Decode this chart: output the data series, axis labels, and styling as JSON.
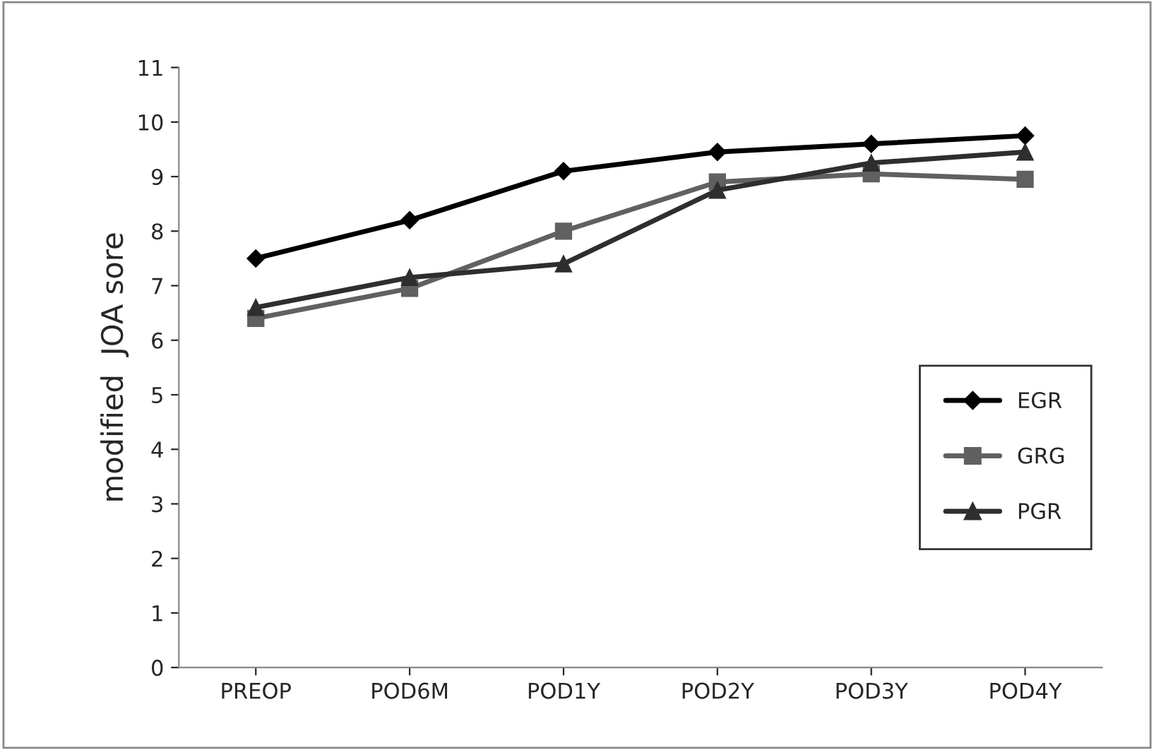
{
  "chart_data": {
    "type": "line",
    "ylabel": "modified  JOA sore",
    "categories": [
      "PREOP",
      "POD6M",
      "POD1Y",
      "POD2Y",
      "POD3Y",
      "POD4Y"
    ],
    "series": [
      {
        "name": "EGR",
        "color": "#000000",
        "marker": "diamond",
        "values": [
          7.5,
          8.2,
          9.1,
          9.45,
          9.6,
          9.75
        ]
      },
      {
        "name": "GRG",
        "color": "#606060",
        "marker": "square",
        "values": [
          6.4,
          6.95,
          8.0,
          8.9,
          9.05,
          8.95
        ]
      },
      {
        "name": "PGR",
        "color": "#2e2e2e",
        "marker": "triangle",
        "values": [
          6.6,
          7.15,
          7.4,
          8.75,
          9.25,
          9.45
        ]
      }
    ],
    "ylim": [
      0,
      11
    ],
    "yticks": [
      0,
      1,
      2,
      3,
      4,
      5,
      6,
      7,
      8,
      9,
      10,
      11
    ],
    "grid": false,
    "legend": "right"
  }
}
